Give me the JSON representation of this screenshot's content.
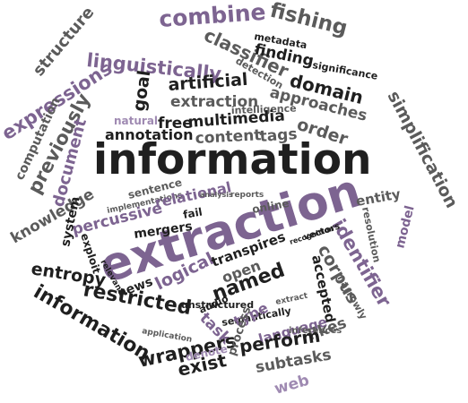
{
  "palette": {
    "dark": "#1f1f1f",
    "gray": "#5b5b5b",
    "light": "#9a9a9a",
    "purple": "#7d6491",
    "lilac": "#9f8ab2"
  },
  "words": [
    {
      "id": "w-information-big",
      "text": "information",
      "color": "dark"
    },
    {
      "id": "w-extraction-big",
      "text": "extraction",
      "color": "purple"
    },
    {
      "id": "w-combine",
      "text": "combine",
      "color": "purple"
    },
    {
      "id": "w-fishing",
      "text": "fishing",
      "color": "gray"
    },
    {
      "id": "w-structure",
      "text": "structure",
      "color": "gray"
    },
    {
      "id": "w-expressions",
      "text": "expressions",
      "color": "purple"
    },
    {
      "id": "w-linguistically",
      "text": "linguistically",
      "color": "purple"
    },
    {
      "id": "w-classifier",
      "text": "classifier",
      "color": "gray"
    },
    {
      "id": "w-metadata",
      "text": "metadata",
      "color": "dark"
    },
    {
      "id": "w-finding",
      "text": "finding",
      "color": "dark"
    },
    {
      "id": "w-detection",
      "text": "detection",
      "color": "gray"
    },
    {
      "id": "w-significance",
      "text": "significance",
      "color": "dark"
    },
    {
      "id": "w-domain",
      "text": "domain",
      "color": "dark"
    },
    {
      "id": "w-approaches",
      "text": "approaches",
      "color": "gray"
    },
    {
      "id": "w-simplification",
      "text": "simplification",
      "color": "gray"
    },
    {
      "id": "w-goal",
      "text": "goal",
      "color": "dark"
    },
    {
      "id": "w-artificial",
      "text": "artificial",
      "color": "dark"
    },
    {
      "id": "w-extraction-small",
      "text": "extraction",
      "color": "gray"
    },
    {
      "id": "w-intelligence",
      "text": "intelligence",
      "color": "gray"
    },
    {
      "id": "w-previously",
      "text": "previously",
      "color": "gray"
    },
    {
      "id": "w-computation",
      "text": "computation",
      "color": "gray"
    },
    {
      "id": "w-document",
      "text": "document",
      "color": "purple"
    },
    {
      "id": "w-natural",
      "text": "natural",
      "color": "lilac"
    },
    {
      "id": "w-free",
      "text": "free",
      "color": "dark"
    },
    {
      "id": "w-multimedia",
      "text": "multimedia",
      "color": "dark"
    },
    {
      "id": "w-order",
      "text": "order",
      "color": "gray"
    },
    {
      "id": "w-annotation",
      "text": "annotation",
      "color": "dark"
    },
    {
      "id": "w-content",
      "text": "content",
      "color": "gray"
    },
    {
      "id": "w-tags",
      "text": "tags",
      "color": "gray"
    },
    {
      "id": "w-knowledge",
      "text": "knowledge",
      "color": "gray"
    },
    {
      "id": "w-sentence",
      "text": "sentence",
      "color": "gray"
    },
    {
      "id": "w-implementations",
      "text": "implementations",
      "color": "gray"
    },
    {
      "id": "w-relational",
      "text": "relational",
      "color": "purple"
    },
    {
      "id": "w-analysis",
      "text": "analysis",
      "color": "gray"
    },
    {
      "id": "w-reports",
      "text": "reports",
      "color": "gray"
    },
    {
      "id": "w-online",
      "text": "online",
      "color": "gray"
    },
    {
      "id": "w-resolution",
      "text": "resolution",
      "color": "gray"
    },
    {
      "id": "w-entity",
      "text": "entity",
      "color": "gray"
    },
    {
      "id": "w-percussive",
      "text": "percussive",
      "color": "purple"
    },
    {
      "id": "w-mergers",
      "text": "mergers",
      "color": "dark"
    },
    {
      "id": "w-fail",
      "text": "fail",
      "color": "dark"
    },
    {
      "id": "w-system",
      "text": "system",
      "color": "dark"
    },
    {
      "id": "w-exploit",
      "text": "exploit",
      "color": "dark"
    },
    {
      "id": "w-relevant",
      "text": "relevant",
      "color": "dark"
    },
    {
      "id": "w-identifier",
      "text": "identifier",
      "color": "purple"
    },
    {
      "id": "w-corpus",
      "text": "corpus",
      "color": "gray"
    },
    {
      "id": "w-model",
      "text": "model",
      "color": "purple"
    },
    {
      "id": "w-entropy",
      "text": "entropy",
      "color": "dark"
    },
    {
      "id": "w-restricted",
      "text": "restricted",
      "color": "dark"
    },
    {
      "id": "w-information-small",
      "text": "information",
      "color": "dark"
    },
    {
      "id": "w-news",
      "text": "news",
      "color": "dark"
    },
    {
      "id": "w-logical",
      "text": "logical",
      "color": "purple"
    },
    {
      "id": "w-transpires",
      "text": "transpires",
      "color": "dark"
    },
    {
      "id": "w-open",
      "text": "open",
      "color": "gray"
    },
    {
      "id": "w-recognition",
      "text": "recognition",
      "color": "dark"
    },
    {
      "id": "w-vectors",
      "text": "vectors",
      "color": "dark"
    },
    {
      "id": "w-accepted",
      "text": "accepted",
      "color": "dark"
    },
    {
      "id": "w-narrowly",
      "text": "narrowly",
      "color": "gray"
    },
    {
      "id": "w-named",
      "text": "named",
      "color": "dark"
    },
    {
      "id": "w-unstructured",
      "text": "unstructured",
      "color": "dark"
    },
    {
      "id": "w-audio",
      "text": "audio",
      "color": "dark"
    },
    {
      "id": "w-semantically",
      "text": "semantically",
      "color": "dark"
    },
    {
      "id": "w-extract",
      "text": "extract",
      "color": "gray"
    },
    {
      "id": "w-task",
      "text": "task",
      "color": "purple"
    },
    {
      "id": "w-type",
      "text": "type",
      "color": "purple"
    },
    {
      "id": "w-application",
      "text": "application",
      "color": "gray"
    },
    {
      "id": "w-wrappers",
      "text": "wrappers",
      "color": "dark"
    },
    {
      "id": "w-language",
      "text": "language",
      "color": "purple"
    },
    {
      "id": "w-inferences",
      "text": "inferences",
      "color": "gray"
    },
    {
      "id": "w-likes",
      "text": "likes",
      "color": "gray"
    },
    {
      "id": "w-denote",
      "text": "denote",
      "color": "lilac"
    },
    {
      "id": "w-exist",
      "text": "exist",
      "color": "dark"
    },
    {
      "id": "w-process",
      "text": "process",
      "color": "gray"
    },
    {
      "id": "w-perform",
      "text": "perform",
      "color": "dark"
    },
    {
      "id": "w-subtasks",
      "text": "subtasks",
      "color": "gray"
    },
    {
      "id": "w-web",
      "text": "web",
      "color": "lilac"
    }
  ]
}
